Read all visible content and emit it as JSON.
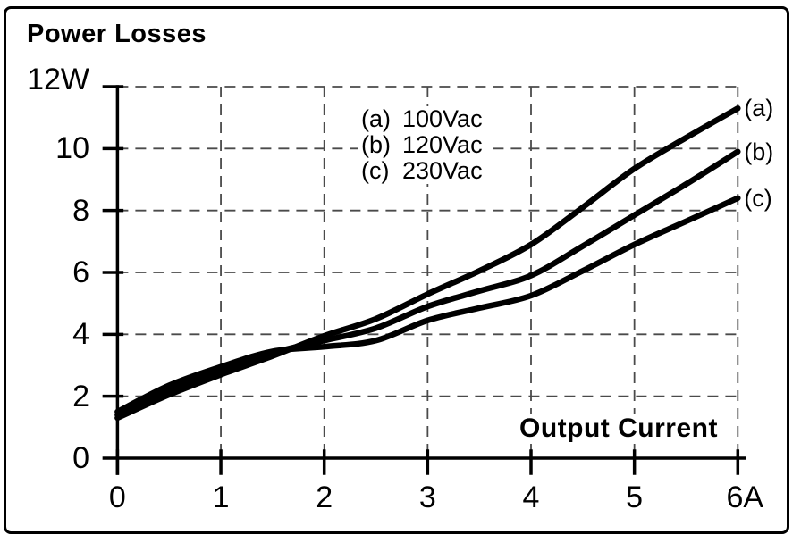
{
  "chart_data": {
    "type": "line",
    "title": "Power Losses",
    "x_axis_label": "Output Current",
    "x_unit": "A",
    "y_unit": "W",
    "xlim": [
      0,
      6
    ],
    "ylim": [
      0,
      12
    ],
    "x_ticks": [
      "0",
      "1",
      "2",
      "3",
      "4",
      "5",
      "6A"
    ],
    "y_ticks": [
      "12W",
      "10",
      "8",
      "6",
      "4",
      "2",
      "0"
    ],
    "grid_style": "dashed",
    "legend_position": "inside-top-center",
    "legend": [
      {
        "key": "(a)",
        "label": "100Vac"
      },
      {
        "key": "(b)",
        "label": "120Vac"
      },
      {
        "key": "(c)",
        "label": "230Vac"
      }
    ],
    "series": [
      {
        "name": "100Vac",
        "curve_label": "(a)",
        "x": [
          0,
          0.5,
          1,
          1.5,
          2,
          2.5,
          3,
          3.5,
          4,
          4.5,
          5,
          5.5,
          6
        ],
        "y": [
          1.3,
          2.05,
          2.7,
          3.3,
          3.95,
          4.5,
          5.3,
          6.05,
          6.9,
          8.1,
          9.35,
          10.35,
          11.3
        ]
      },
      {
        "name": "120Vac",
        "curve_label": "(b)",
        "x": [
          0,
          0.5,
          1,
          1.5,
          2,
          2.5,
          3,
          3.5,
          4,
          4.5,
          5,
          5.5,
          6
        ],
        "y": [
          1.4,
          2.2,
          2.85,
          3.4,
          3.8,
          4.2,
          4.9,
          5.4,
          5.9,
          6.85,
          7.85,
          8.85,
          9.9
        ]
      },
      {
        "name": "230Vac",
        "curve_label": "(c)",
        "x": [
          0,
          0.5,
          1,
          1.5,
          2,
          2.5,
          3,
          3.5,
          4,
          4.5,
          5,
          5.5,
          6
        ],
        "y": [
          1.5,
          2.35,
          2.95,
          3.45,
          3.6,
          3.8,
          4.45,
          4.85,
          5.25,
          6.05,
          6.9,
          7.65,
          8.4
        ]
      }
    ]
  },
  "colors": {
    "curve": "#000000",
    "gridline": "#4a4a4a",
    "text": "#000000",
    "background": "#ffffff"
  }
}
